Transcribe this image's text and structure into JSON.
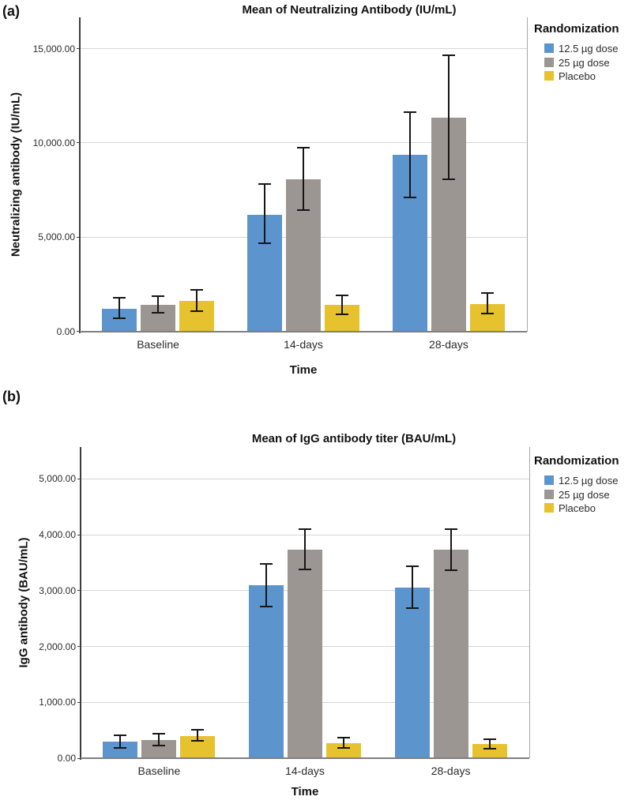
{
  "page": {
    "panel_a": "(a)",
    "panel_b": "(b)"
  },
  "colors": {
    "dose_12_5": "#5C94CE",
    "dose_25": "#9C9692",
    "placebo": "#E5C22E",
    "gridline": "#D6D6D6",
    "axis_dark": "#3C3C3C",
    "axis_gray": "#7F7F7F",
    "error_bar": "#161616"
  },
  "chart_data": [
    {
      "type": "bar",
      "title": "Mean of Neutralizing Antibody (IU/mL)",
      "ylabel": "Neutralizing antibody (IU/mL)",
      "xlabel": "Time",
      "legend_title": "Randomization",
      "categories": [
        "Baseline",
        "14-days",
        "28-days"
      ],
      "ylim": [
        0,
        16660
      ],
      "grid": true,
      "legend_position": "top-right",
      "yticks": [
        {
          "value": 0,
          "label": "0.00"
        },
        {
          "value": 5000,
          "label": "5,000.00"
        },
        {
          "value": 10000,
          "label": "10,000.00"
        },
        {
          "value": 15000,
          "label": "15,000.00"
        }
      ],
      "series": [
        {
          "name": "12.5 µg dose",
          "color": "#5C94CE",
          "values": [
            1200,
            6200,
            9350
          ],
          "ci_low": [
            700,
            4680,
            7100
          ],
          "ci_high": [
            1790,
            7820,
            11650
          ]
        },
        {
          "name": "25 µg dose",
          "color": "#9C9692",
          "values": [
            1400,
            8050,
            11320
          ],
          "ci_low": [
            980,
            6430,
            8050
          ],
          "ci_high": [
            1870,
            9750,
            14650
          ]
        },
        {
          "name": "Placebo",
          "color": "#E5C22E",
          "values": [
            1620,
            1400,
            1450
          ],
          "ci_low": [
            1060,
            920,
            930
          ],
          "ci_high": [
            2200,
            1890,
            2050
          ]
        }
      ]
    },
    {
      "type": "bar",
      "title": "Mean of IgG antibody titer (BAU/mL)",
      "ylabel": "IgG antibody (BAU/mL)",
      "xlabel": "Time",
      "legend_title": "Randomization",
      "categories": [
        "Baseline",
        "14-days",
        "28-days"
      ],
      "ylim": [
        0,
        5570
      ],
      "grid": true,
      "legend_position": "top-right",
      "yticks": [
        {
          "value": 0,
          "label": "0.00"
        },
        {
          "value": 1000,
          "label": "1,000.00"
        },
        {
          "value": 2000,
          "label": "2,000.00"
        },
        {
          "value": 3000,
          "label": "3,000.00"
        },
        {
          "value": 4000,
          "label": "4,000.00"
        },
        {
          "value": 5000,
          "label": "5,000.00"
        }
      ],
      "series": [
        {
          "name": "12.5 µg dose",
          "color": "#5C94CE",
          "values": [
            295,
            3090,
            3050
          ],
          "ci_low": [
            190,
            2710,
            2680
          ],
          "ci_high": [
            415,
            3480,
            3440
          ]
        },
        {
          "name": "25 µg dose",
          "color": "#9C9692",
          "values": [
            330,
            3730,
            3730
          ],
          "ci_low": [
            230,
            3380,
            3370
          ],
          "ci_high": [
            445,
            4100,
            4100
          ]
        },
        {
          "name": "Placebo",
          "color": "#E5C22E",
          "values": [
            400,
            270,
            250
          ],
          "ci_low": [
            310,
            185,
            170
          ],
          "ci_high": [
            515,
            370,
            340
          ]
        }
      ]
    }
  ]
}
